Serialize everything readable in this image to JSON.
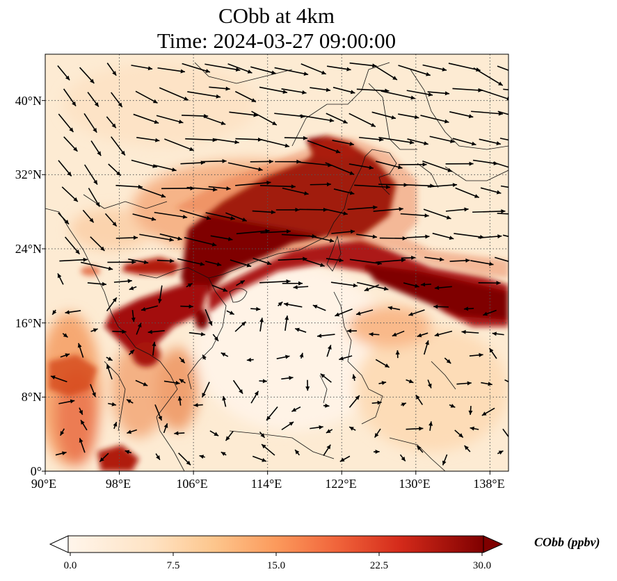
{
  "title": {
    "line1": "CObb at 4km",
    "line2": "Time: 2024-03-27 09:00:00"
  },
  "map": {
    "lon_range": [
      90,
      140
    ],
    "lat_range": [
      0,
      45
    ],
    "lat_ticks": [
      {
        "value": 0,
        "label": "0°"
      },
      {
        "value": 8,
        "label": "8°N"
      },
      {
        "value": 16,
        "label": "16°N"
      },
      {
        "value": 24,
        "label": "24°N"
      },
      {
        "value": 32,
        "label": "32°N"
      },
      {
        "value": 40,
        "label": "40°N"
      }
    ],
    "lon_ticks": [
      {
        "value": 90,
        "label": "90°E"
      },
      {
        "value": 98,
        "label": "98°E"
      },
      {
        "value": 106,
        "label": "106°E"
      },
      {
        "value": 114,
        "label": "114°E"
      },
      {
        "value": 122,
        "label": "122°E"
      },
      {
        "value": 130,
        "label": "130°E"
      },
      {
        "value": 138,
        "label": "138°E"
      }
    ],
    "gridlines": true,
    "field": "CObb concentration, high along a plume from Indochina across southern China to Taiwan and the western Pacific",
    "vectors": "wind arrows, westerly in the north, weak and variable over the South China Sea"
  },
  "colorbar": {
    "label": "CObb (ppbv)",
    "ticks": [
      "0.0",
      "7.5",
      "15.0",
      "22.5",
      "30.0"
    ],
    "min": 0,
    "max": 30,
    "colors": [
      "#fff5eb",
      "#fdd9b1",
      "#fdae6b",
      "#f16913",
      "#d94801",
      "#a63603",
      "#7f0000"
    ]
  }
}
